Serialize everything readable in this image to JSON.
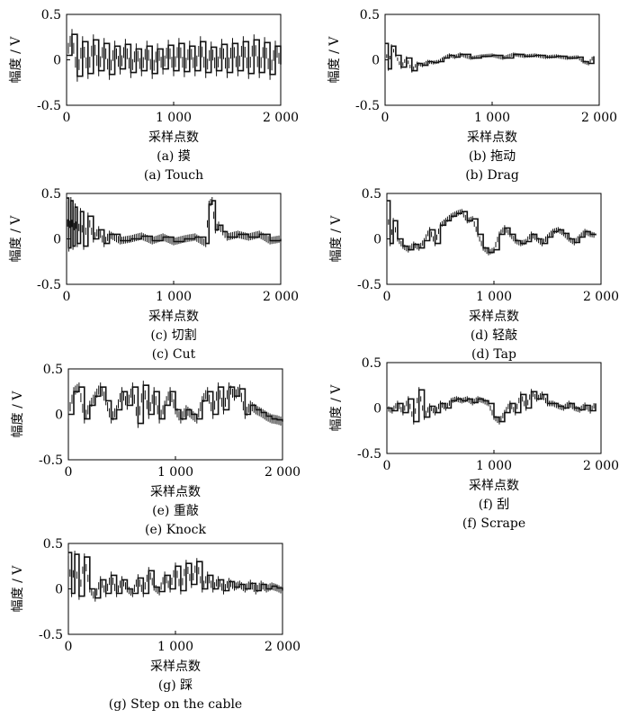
{
  "chart_data": [
    {
      "type": "line",
      "panel": "a",
      "xlabel": "采样点数",
      "ylabel": "幅度 / V",
      "caption_cn": "(a) 摸",
      "caption_en": "(a) Touch",
      "xlim": [
        0,
        2000
      ],
      "ylim": [
        -0.5,
        0.5
      ],
      "xticks": [
        0,
        1000,
        2000
      ],
      "xtick_labels": [
        "0",
        "1 000",
        "2 000"
      ],
      "yticks": [
        0.5,
        0,
        -0.5
      ],
      "ytick_labels": [
        "0.5",
        "0",
        "-0.5"
      ],
      "x": [
        0,
        50,
        100,
        150,
        200,
        250,
        300,
        350,
        400,
        450,
        500,
        550,
        600,
        650,
        700,
        750,
        800,
        850,
        900,
        950,
        1000,
        1050,
        1100,
        1150,
        1200,
        1250,
        1300,
        1350,
        1400,
        1450,
        1500,
        1550,
        1600,
        1650,
        1700,
        1750,
        1800,
        1850,
        1900,
        1950,
        2000
      ],
      "y": [
        0.05,
        0.28,
        -0.18,
        0.2,
        -0.15,
        0.22,
        -0.12,
        0.18,
        -0.16,
        0.15,
        -0.1,
        0.17,
        -0.14,
        0.12,
        -0.12,
        0.15,
        -0.15,
        0.12,
        -0.1,
        0.16,
        -0.12,
        0.18,
        -0.13,
        0.15,
        -0.12,
        0.2,
        -0.14,
        0.14,
        -0.12,
        0.17,
        -0.14,
        0.18,
        -0.12,
        0.2,
        -0.15,
        0.22,
        -0.14,
        0.19,
        -0.16,
        0.15,
        -0.05
      ],
      "envelope": 0.06
    },
    {
      "type": "line",
      "panel": "b",
      "xlabel": "采样点数",
      "ylabel": "幅度 / V",
      "caption_cn": "(b) 拖动",
      "caption_en": "(b) Drag",
      "xlim": [
        0,
        2000
      ],
      "ylim": [
        -0.5,
        0.5
      ],
      "xticks": [
        0,
        1000,
        2000
      ],
      "xtick_labels": [
        "0",
        "1 000",
        "2 000"
      ],
      "yticks": [
        0.5,
        0,
        -0.5
      ],
      "ytick_labels": [
        "0.5",
        "0",
        "-0.5"
      ],
      "x": [
        0,
        30,
        60,
        100,
        150,
        200,
        250,
        300,
        350,
        400,
        450,
        500,
        550,
        600,
        650,
        700,
        800,
        900,
        1000,
        1100,
        1200,
        1300,
        1400,
        1500,
        1600,
        1700,
        1800,
        1850,
        1900,
        1950
      ],
      "y": [
        0.18,
        -0.1,
        0.15,
        0.05,
        -0.08,
        0.02,
        -0.12,
        -0.04,
        -0.06,
        -0.02,
        -0.03,
        -0.02,
        0.02,
        0.05,
        0.03,
        0.06,
        0.02,
        0.04,
        0.05,
        0.02,
        0.06,
        0.04,
        0.05,
        0.03,
        0.04,
        0.02,
        0.03,
        -0.02,
        -0.04,
        0.04
      ],
      "envelope": 0.02
    },
    {
      "type": "line",
      "panel": "c",
      "xlabel": "采样点数",
      "ylabel": "幅度 / V",
      "caption_cn": "(c) 切割",
      "caption_en": "(c) Cut",
      "xlim": [
        0,
        2000
      ],
      "ylim": [
        -0.5,
        0.5
      ],
      "xticks": [
        0,
        1000,
        2000
      ],
      "xtick_labels": [
        "0",
        "1 000",
        "2 000"
      ],
      "yticks": [
        0.5,
        0,
        -0.5
      ],
      "ytick_labels": [
        "0.5",
        "0",
        "-0.5"
      ],
      "x": [
        0,
        20,
        40,
        60,
        80,
        100,
        130,
        160,
        200,
        250,
        300,
        350,
        400,
        500,
        600,
        700,
        800,
        900,
        1000,
        1100,
        1200,
        1300,
        1330,
        1360,
        1390,
        1420,
        1460,
        1500,
        1600,
        1700,
        1800,
        1900,
        2000
      ],
      "y": [
        0.45,
        -0.1,
        0.42,
        -0.08,
        0.35,
        -0.05,
        0.3,
        -0.08,
        0.25,
        0.0,
        0.1,
        -0.05,
        0.05,
        -0.02,
        0.0,
        0.03,
        -0.02,
        0.02,
        -0.03,
        0.0,
        0.02,
        -0.05,
        0.38,
        0.42,
        0.1,
        0.15,
        0.08,
        0.02,
        0.05,
        0.02,
        0.05,
        -0.02,
        0.0
      ],
      "envelope": 0.04
    },
    {
      "type": "line",
      "panel": "d",
      "xlabel": "采样点数",
      "ylabel": "幅度 / V",
      "caption_cn": "(d) 轻敲",
      "caption_en": "(d) Tap",
      "xlim": [
        0,
        2000
      ],
      "ylim": [
        -0.5,
        0.5
      ],
      "xticks": [
        0,
        1000,
        2000
      ],
      "xtick_labels": [
        "0",
        "1 000",
        "2 000"
      ],
      "yticks": [
        0.5,
        0,
        -0.5
      ],
      "ytick_labels": [
        "0.5",
        "0",
        "-0.5"
      ],
      "x": [
        0,
        30,
        60,
        100,
        150,
        200,
        250,
        300,
        350,
        400,
        450,
        500,
        550,
        600,
        650,
        700,
        750,
        800,
        850,
        900,
        950,
        1000,
        1050,
        1100,
        1150,
        1200,
        1250,
        1300,
        1350,
        1400,
        1450,
        1500,
        1550,
        1600,
        1650,
        1700,
        1750,
        1800,
        1850,
        1900,
        1950
      ],
      "y": [
        0.42,
        -0.05,
        0.2,
        0.0,
        -0.08,
        -0.12,
        -0.06,
        -0.1,
        -0.02,
        0.1,
        -0.05,
        0.15,
        0.2,
        0.25,
        0.28,
        0.3,
        0.2,
        0.22,
        0.05,
        -0.1,
        -0.15,
        -0.12,
        0.05,
        0.12,
        0.05,
        -0.02,
        -0.05,
        -0.03,
        0.05,
        0.0,
        -0.05,
        0.02,
        0.08,
        0.1,
        0.06,
        0.0,
        -0.04,
        0.02,
        0.08,
        0.05,
        0.04
      ],
      "envelope": 0.03
    },
    {
      "type": "line",
      "panel": "e",
      "xlabel": "采样点数",
      "ylabel": "幅度 / V",
      "caption_cn": "(e) 重敲",
      "caption_en": "(e) Knock",
      "xlim": [
        0,
        2000
      ],
      "ylim": [
        -0.5,
        0.5
      ],
      "xticks": [
        0,
        1000,
        2000
      ],
      "xtick_labels": [
        "0",
        "1 000",
        "2 000"
      ],
      "yticks": [
        0.5,
        0,
        -0.5
      ],
      "ytick_labels": [
        "0.5",
        "0",
        "-0.5"
      ],
      "x": [
        0,
        50,
        100,
        150,
        200,
        250,
        300,
        350,
        400,
        450,
        500,
        550,
        600,
        650,
        700,
        750,
        800,
        850,
        900,
        950,
        1000,
        1050,
        1100,
        1150,
        1200,
        1250,
        1300,
        1350,
        1400,
        1450,
        1500,
        1550,
        1600,
        1650,
        1700,
        1750,
        1800,
        1850,
        1900,
        1950,
        2000
      ],
      "y": [
        0.0,
        0.25,
        0.3,
        -0.05,
        0.1,
        0.2,
        0.3,
        0.15,
        -0.05,
        0.05,
        0.25,
        0.1,
        0.3,
        -0.1,
        0.32,
        0.0,
        0.25,
        -0.05,
        0.1,
        0.25,
        0.05,
        -0.05,
        0.05,
        0.0,
        -0.05,
        0.15,
        0.25,
        0.0,
        0.3,
        0.05,
        0.3,
        0.2,
        0.28,
        0.0,
        0.1,
        0.05,
        0.02,
        -0.02,
        -0.05,
        -0.06,
        -0.08
      ],
      "envelope": 0.05
    },
    {
      "type": "line",
      "panel": "f",
      "xlabel": "采样点数",
      "ylabel": "幅度 / V",
      "caption_cn": "(f) 刮",
      "caption_en": "(f) Scrape",
      "xlim": [
        0,
        2000
      ],
      "ylim": [
        -0.5,
        0.5
      ],
      "xticks": [
        0,
        1000,
        2000
      ],
      "xtick_labels": [
        "0",
        "1 000",
        "2 000"
      ],
      "yticks": [
        0.5,
        0,
        -0.5
      ],
      "ytick_labels": [
        "0.5",
        "0",
        "-0.5"
      ],
      "x": [
        0,
        50,
        100,
        150,
        200,
        250,
        300,
        350,
        400,
        450,
        500,
        550,
        600,
        650,
        700,
        750,
        800,
        850,
        900,
        950,
        1000,
        1050,
        1100,
        1150,
        1200,
        1250,
        1300,
        1350,
        1400,
        1450,
        1500,
        1550,
        1600,
        1650,
        1700,
        1750,
        1800,
        1850,
        1900,
        1950
      ],
      "y": [
        0.0,
        -0.03,
        0.05,
        -0.05,
        0.1,
        -0.15,
        0.2,
        -0.1,
        0.02,
        -0.05,
        0.05,
        0.0,
        0.08,
        0.1,
        0.08,
        0.1,
        0.06,
        0.1,
        0.08,
        0.05,
        -0.1,
        -0.15,
        -0.05,
        0.05,
        -0.05,
        0.15,
        0.0,
        0.18,
        0.1,
        0.15,
        0.05,
        0.05,
        0.02,
        0.0,
        0.05,
        0.0,
        -0.02,
        0.03,
        -0.03,
        0.05
      ],
      "envelope": 0.03
    },
    {
      "type": "line",
      "panel": "g",
      "xlabel": "采样点数",
      "ylabel": "幅度 / V",
      "caption_cn": "(g) 踩",
      "caption_en": "(g) Step on the cable",
      "xlim": [
        0,
        2000
      ],
      "ylim": [
        -0.5,
        0.5
      ],
      "xticks": [
        0,
        1000,
        2000
      ],
      "xtick_labels": [
        "0",
        "1 000",
        "2 000"
      ],
      "yticks": [
        0.5,
        0,
        -0.5
      ],
      "ytick_labels": [
        "0.5",
        "0",
        "-0.5"
      ],
      "x": [
        0,
        30,
        60,
        100,
        150,
        200,
        250,
        300,
        350,
        400,
        450,
        500,
        550,
        600,
        650,
        700,
        750,
        800,
        850,
        900,
        950,
        1000,
        1050,
        1100,
        1150,
        1200,
        1250,
        1300,
        1350,
        1400,
        1450,
        1500,
        1550,
        1600,
        1650,
        1700,
        1750,
        1800,
        1850,
        1900,
        1950,
        2000
      ],
      "y": [
        0.4,
        -0.05,
        0.38,
        -0.08,
        0.35,
        0.0,
        -0.1,
        0.1,
        -0.05,
        0.15,
        -0.05,
        0.1,
        0.0,
        -0.05,
        0.12,
        -0.05,
        0.2,
        0.02,
        -0.03,
        0.15,
        0.0,
        0.25,
        -0.02,
        0.28,
        0.05,
        0.3,
        0.0,
        0.15,
        0.0,
        0.1,
        -0.02,
        0.08,
        0.02,
        0.05,
        0.0,
        0.06,
        -0.02,
        0.05,
        0.0,
        0.03,
        0.01,
        -0.02
      ],
      "envelope": 0.04
    }
  ]
}
